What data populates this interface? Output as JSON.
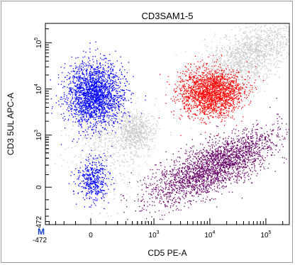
{
  "chart_data": {
    "type": "scatter",
    "title": "CD3SAM1-5",
    "xlabel": "CD5 PE-A",
    "ylabel": "CD3 5UL APC-A",
    "scale": "biexponential",
    "xlim": [
      -472,
      262144
    ],
    "ylim": [
      -472,
      262144
    ],
    "x_ticks": [
      {
        "label_base": "-472",
        "label_exp": "",
        "value": -472
      },
      {
        "label_base": "0",
        "label_exp": "",
        "value": 0
      },
      {
        "label_base": "10",
        "label_exp": "3",
        "value": 1000
      },
      {
        "label_base": "10",
        "label_exp": "4",
        "value": 10000
      },
      {
        "label_base": "10",
        "label_exp": "5",
        "value": 100000
      }
    ],
    "y_ticks": [
      {
        "label_base": "-472",
        "label_exp": "",
        "value": -472
      },
      {
        "label_base": "0",
        "label_exp": "",
        "value": 0
      },
      {
        "label_base": "10",
        "label_exp": "3",
        "value": 1000
      },
      {
        "label_base": "10",
        "label_exp": "4",
        "value": 10000
      },
      {
        "label_base": "10",
        "label_exp": "5",
        "value": 100000
      }
    ],
    "grid": false,
    "corner_marker": "M",
    "populations": [
      {
        "color": "#c8c8c8",
        "description": "ungated events"
      },
      {
        "color": "#0000ff",
        "center": [
          50,
          7000
        ],
        "description": "CD3+ CD5- cluster"
      },
      {
        "color": "#0000ff",
        "center": [
          50,
          20
        ],
        "description": "CD3- CD5- cluster"
      },
      {
        "color": "#ff0000",
        "center": [
          9000,
          9000
        ],
        "description": "CD3+ CD5+ cluster"
      },
      {
        "color": "#660066",
        "center": [
          12000,
          250
        ],
        "description": "CD3- CD5+ cluster"
      }
    ]
  }
}
